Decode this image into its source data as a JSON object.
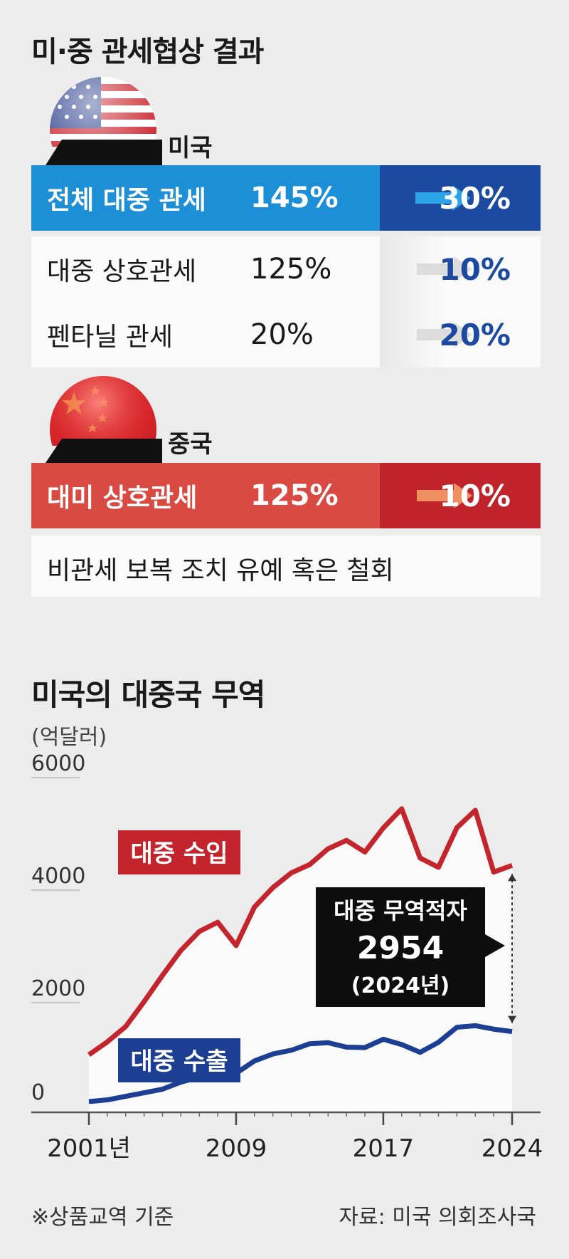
{
  "title": "미·중 관세협상 결과",
  "us": {
    "label": "미국",
    "rows": [
      {
        "name": "전체 대중 관세",
        "from": "145%",
        "to": "30%"
      },
      {
        "name": "대중 상호관세",
        "from": "125%",
        "to": "10%"
      },
      {
        "name": "펜타닐 관세",
        "from": "20%",
        "to": "20%"
      }
    ]
  },
  "china": {
    "label": "중국",
    "rows": [
      {
        "name": "대미 상호관세",
        "from": "125%",
        "to": "10%"
      }
    ],
    "note": "비관세 보복 조치 유예 혹은 철회"
  },
  "colors": {
    "us_blue": "#1d8fd6",
    "us_navy": "#1c4aa0",
    "cn_red": "#d94a43",
    "cn_dark_red": "#c0232a",
    "import_line": "#c4242b",
    "export_line": "#1c3f94"
  },
  "chart_data": {
    "type": "line",
    "title": "미국의 대중국 무역",
    "unit": "(억달러)",
    "ylim": [
      0,
      6000
    ],
    "yticks": [
      "0",
      "2000",
      "4000",
      "6000"
    ],
    "xtick_labels": [
      {
        "year": 2001,
        "label": "2001년"
      },
      {
        "year": 2009,
        "label": "2009"
      },
      {
        "year": 2017,
        "label": "2017"
      },
      {
        "year": 2024,
        "label": "2024"
      }
    ],
    "x": [
      2001,
      2002,
      2003,
      2004,
      2005,
      2006,
      2007,
      2008,
      2009,
      2010,
      2011,
      2012,
      2013,
      2014,
      2015,
      2016,
      2017,
      2018,
      2019,
      2020,
      2021,
      2022,
      2023,
      2024
    ],
    "series": [
      {
        "name": "대중 수입",
        "values": [
          1023,
          1252,
          1524,
          1967,
          2435,
          2878,
          3215,
          3378,
          2964,
          3650,
          3994,
          4256,
          4404,
          4685,
          4834,
          4626,
          5055,
          5395,
          4521,
          4355,
          5059,
          5368,
          4270,
          4389
        ]
      },
      {
        "name": "대중 수출",
        "values": [
          191,
          221,
          284,
          347,
          411,
          537,
          625,
          698,
          694,
          914,
          1037,
          1103,
          1219,
          1237,
          1158,
          1151,
          1299,
          1204,
          1066,
          1245,
          1512,
          1540,
          1478,
          1435
        ]
      }
    ],
    "annotation": {
      "title": "대중 무역적자",
      "value": "2954",
      "year": "(2024년)"
    }
  },
  "footnote_left": "※상품교역 기준",
  "footnote_right": "자료: 미국 의회조사국"
}
